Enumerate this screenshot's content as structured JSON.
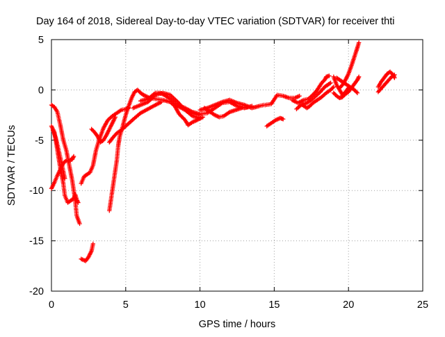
{
  "chart_data": {
    "type": "scatter",
    "title": "Day 164 of 2018, Sidereal Day-to-day VTEC variation (SDTVAR) for receiver thti",
    "xlabel": "GPS time / hours",
    "ylabel": "SDTVAR / TECUs",
    "xlim": [
      0,
      25
    ],
    "ylim": [
      -20,
      5
    ],
    "xticks": [
      0,
      5,
      10,
      15,
      20,
      25
    ],
    "yticks": [
      -20,
      -15,
      -10,
      -5,
      0,
      5
    ],
    "grid": true,
    "marker": "+",
    "series_color": "#ff0000",
    "tracks": [
      [
        [
          0.0,
          -1.5
        ],
        [
          0.2,
          -1.7
        ],
        [
          0.4,
          -2.2
        ],
        [
          0.6,
          -3.5
        ],
        [
          0.8,
          -5.0
        ],
        [
          1.0,
          -6.0
        ],
        [
          1.2,
          -7.5
        ],
        [
          1.4,
          -9.0
        ],
        [
          1.6,
          -11.0
        ],
        [
          1.7,
          -12.5
        ],
        [
          1.9,
          -13.3
        ]
      ],
      [
        [
          0.0,
          -3.6
        ],
        [
          0.2,
          -4.2
        ],
        [
          0.4,
          -6.0
        ],
        [
          0.6,
          -7.8
        ],
        [
          0.8,
          -9.3
        ],
        [
          0.9,
          -10.5
        ],
        [
          1.1,
          -11.2
        ],
        [
          1.3,
          -11.0
        ],
        [
          1.5,
          -10.8
        ],
        [
          1.6,
          -10.4
        ],
        [
          1.7,
          -10.9
        ],
        [
          1.8,
          -11.2
        ]
      ],
      [
        [
          0.0,
          -9.8
        ],
        [
          0.2,
          -9.2
        ],
        [
          0.4,
          -8.5
        ],
        [
          0.6,
          -7.9
        ],
        [
          0.8,
          -7.3
        ],
        [
          1.0,
          -7.0
        ],
        [
          1.2,
          -7.0
        ],
        [
          1.4,
          -6.9
        ],
        [
          1.5,
          -6.6
        ]
      ],
      [
        [
          0.1,
          -4.0
        ],
        [
          0.3,
          -4.8
        ],
        [
          0.5,
          -6.1
        ],
        [
          0.7,
          -7.4
        ],
        [
          0.9,
          -8.8
        ]
      ],
      [
        [
          2.0,
          -16.8
        ],
        [
          2.3,
          -17.0
        ],
        [
          2.5,
          -16.6
        ],
        [
          2.7,
          -16.0
        ],
        [
          2.8,
          -15.3
        ]
      ],
      [
        [
          2.0,
          -9.3
        ],
        [
          2.2,
          -8.6
        ],
        [
          2.4,
          -8.4
        ],
        [
          2.6,
          -8.2
        ],
        [
          2.8,
          -7.5
        ],
        [
          3.0,
          -6.0
        ],
        [
          3.2,
          -5.0
        ],
        [
          3.5,
          -3.8
        ],
        [
          3.8,
          -3.0
        ],
        [
          4.1,
          -2.6
        ],
        [
          4.4,
          -2.3
        ],
        [
          4.7,
          -2.0
        ],
        [
          5.0,
          -1.9
        ],
        [
          5.2,
          -1.8
        ]
      ],
      [
        [
          2.7,
          -3.9
        ],
        [
          2.9,
          -4.2
        ],
        [
          3.1,
          -4.6
        ],
        [
          3.3,
          -5.2
        ],
        [
          3.5,
          -5.0
        ],
        [
          3.7,
          -4.5
        ],
        [
          3.9,
          -3.9
        ],
        [
          4.1,
          -3.3
        ],
        [
          4.3,
          -2.7
        ]
      ],
      [
        [
          3.9,
          -12.0
        ],
        [
          4.0,
          -11.0
        ],
        [
          4.1,
          -10.0
        ],
        [
          4.2,
          -9.0
        ],
        [
          4.3,
          -8.0
        ],
        [
          4.4,
          -7.0
        ],
        [
          4.5,
          -5.5
        ],
        [
          4.6,
          -4.6
        ],
        [
          4.8,
          -3.6
        ],
        [
          5.0,
          -2.5
        ],
        [
          5.2,
          -1.6
        ],
        [
          5.4,
          -0.8
        ],
        [
          5.6,
          -0.2
        ],
        [
          5.8,
          0.0
        ],
        [
          6.0,
          -0.3
        ],
        [
          6.2,
          -0.5
        ]
      ],
      [
        [
          3.9,
          -5.2
        ],
        [
          4.1,
          -4.8
        ],
        [
          4.4,
          -4.3
        ],
        [
          4.7,
          -4.0
        ],
        [
          5.0,
          -3.6
        ],
        [
          5.3,
          -3.2
        ],
        [
          5.6,
          -2.8
        ],
        [
          6.0,
          -2.3
        ],
        [
          6.5,
          -1.9
        ],
        [
          7.0,
          -1.5
        ],
        [
          7.4,
          -1.2
        ]
      ],
      [
        [
          5.5,
          -1.8
        ],
        [
          6.0,
          -1.5
        ],
        [
          6.5,
          -1.2
        ],
        [
          7.0,
          -0.5
        ],
        [
          7.5,
          -0.3
        ],
        [
          8.0,
          -0.5
        ],
        [
          8.5,
          -1.2
        ],
        [
          9.0,
          -2.0
        ],
        [
          9.5,
          -2.6
        ],
        [
          10.0,
          -2.8
        ]
      ],
      [
        [
          6.0,
          -1.1
        ],
        [
          6.5,
          -0.9
        ],
        [
          7.0,
          -0.3
        ],
        [
          7.3,
          -0.3
        ],
        [
          7.6,
          -0.5
        ],
        [
          8.0,
          -0.9
        ],
        [
          8.5,
          -1.6
        ],
        [
          9.0,
          -2.0
        ],
        [
          9.5,
          -2.3
        ],
        [
          10.0,
          -2.5
        ]
      ],
      [
        [
          6.2,
          -0.5
        ],
        [
          6.6,
          -0.8
        ],
        [
          7.0,
          -0.9
        ],
        [
          7.5,
          -1.0
        ],
        [
          8.0,
          -1.2
        ],
        [
          8.3,
          -1.6
        ],
        [
          8.6,
          -2.4
        ],
        [
          9.0,
          -3.0
        ],
        [
          9.2,
          -3.5
        ],
        [
          9.5,
          -3.2
        ],
        [
          9.8,
          -3.0
        ],
        [
          10.2,
          -2.7
        ]
      ],
      [
        [
          8.5,
          -1.5
        ],
        [
          9.0,
          -1.8
        ],
        [
          9.5,
          -2.2
        ],
        [
          10.0,
          -2.4
        ],
        [
          10.5,
          -2.3
        ],
        [
          11.0,
          -1.8
        ],
        [
          11.5,
          -1.3
        ],
        [
          12.0,
          -1.2
        ],
        [
          12.5,
          -1.6
        ],
        [
          13.0,
          -1.8
        ],
        [
          13.5,
          -1.6
        ]
      ],
      [
        [
          10.0,
          -2.0
        ],
        [
          10.5,
          -1.8
        ],
        [
          11.0,
          -1.5
        ],
        [
          11.5,
          -1.2
        ],
        [
          12.0,
          -1.0
        ],
        [
          12.5,
          -1.3
        ],
        [
          13.0,
          -1.5
        ],
        [
          13.5,
          -1.8
        ],
        [
          14.0,
          -1.6
        ],
        [
          14.3,
          -1.5
        ]
      ],
      [
        [
          10.3,
          -1.8
        ],
        [
          10.7,
          -2.2
        ],
        [
          11.0,
          -2.5
        ],
        [
          11.3,
          -2.7
        ],
        [
          11.6,
          -2.6
        ],
        [
          12.0,
          -2.2
        ],
        [
          12.4,
          -2.0
        ],
        [
          12.8,
          -1.8
        ],
        [
          13.2,
          -1.7
        ]
      ],
      [
        [
          14.4,
          -1.5
        ],
        [
          14.8,
          -1.4
        ],
        [
          15.2,
          -0.5
        ],
        [
          15.6,
          -0.6
        ],
        [
          16.0,
          -0.8
        ],
        [
          16.4,
          -0.8
        ],
        [
          16.7,
          -0.6
        ]
      ],
      [
        [
          14.5,
          -3.6
        ],
        [
          14.8,
          -3.3
        ],
        [
          15.1,
          -3.0
        ],
        [
          15.4,
          -2.8
        ],
        [
          15.6,
          -2.9
        ]
      ],
      [
        [
          16.2,
          -1.0
        ],
        [
          16.6,
          -1.3
        ],
        [
          17.0,
          -1.0
        ],
        [
          17.3,
          -0.9
        ],
        [
          17.6,
          -0.5
        ],
        [
          17.9,
          0.0
        ],
        [
          18.2,
          0.7
        ],
        [
          18.4,
          1.0
        ],
        [
          18.5,
          1.3
        ],
        [
          18.7,
          1.4
        ]
      ],
      [
        [
          16.5,
          -1.9
        ],
        [
          16.8,
          -1.5
        ],
        [
          17.2,
          -1.3
        ],
        [
          17.5,
          -1.0
        ],
        [
          17.8,
          -0.6
        ],
        [
          18.1,
          -0.2
        ],
        [
          18.4,
          0.3
        ],
        [
          18.6,
          0.5
        ],
        [
          18.8,
          0.7
        ]
      ],
      [
        [
          16.9,
          -1.5
        ],
        [
          17.2,
          -1.8
        ],
        [
          17.4,
          -1.6
        ],
        [
          17.6,
          -1.3
        ],
        [
          17.9,
          -1.0
        ],
        [
          18.2,
          -0.7
        ],
        [
          18.5,
          -0.3
        ],
        [
          18.8,
          0.0
        ],
        [
          19.0,
          0.3
        ]
      ],
      [
        [
          19.2,
          1.2
        ],
        [
          19.4,
          1.0
        ],
        [
          19.6,
          0.8
        ],
        [
          19.8,
          0.6
        ],
        [
          20.0,
          0.4
        ],
        [
          20.2,
          0.2
        ],
        [
          20.4,
          0.0
        ],
        [
          20.6,
          -0.3
        ]
      ],
      [
        [
          19.0,
          -0.3
        ],
        [
          19.2,
          -0.6
        ],
        [
          19.4,
          -0.8
        ],
        [
          19.6,
          -0.7
        ],
        [
          19.8,
          -0.4
        ],
        [
          20.0,
          -0.2
        ],
        [
          20.2,
          0.2
        ],
        [
          20.4,
          0.6
        ],
        [
          20.6,
          1.0
        ],
        [
          20.7,
          1.3
        ]
      ],
      [
        [
          19.4,
          0.2
        ],
        [
          19.6,
          0.5
        ],
        [
          19.8,
          1.0
        ],
        [
          20.0,
          1.6
        ],
        [
          20.2,
          2.4
        ],
        [
          20.4,
          3.3
        ],
        [
          20.6,
          4.2
        ],
        [
          20.7,
          4.7
        ]
      ],
      [
        [
          19.0,
          1.3
        ],
        [
          19.2,
          0.5
        ],
        [
          19.4,
          0.0
        ],
        [
          19.6,
          -0.5
        ],
        [
          19.8,
          -0.2
        ],
        [
          20.0,
          0.2
        ]
      ],
      [
        [
          22.0,
          0.3
        ],
        [
          22.2,
          0.8
        ],
        [
          22.4,
          1.2
        ],
        [
          22.6,
          1.6
        ],
        [
          22.8,
          1.8
        ],
        [
          23.0,
          1.5
        ],
        [
          23.1,
          1.2
        ]
      ],
      [
        [
          22.0,
          -0.2
        ],
        [
          22.3,
          0.3
        ],
        [
          22.6,
          0.8
        ],
        [
          22.9,
          1.3
        ],
        [
          23.1,
          1.5
        ]
      ]
    ]
  }
}
